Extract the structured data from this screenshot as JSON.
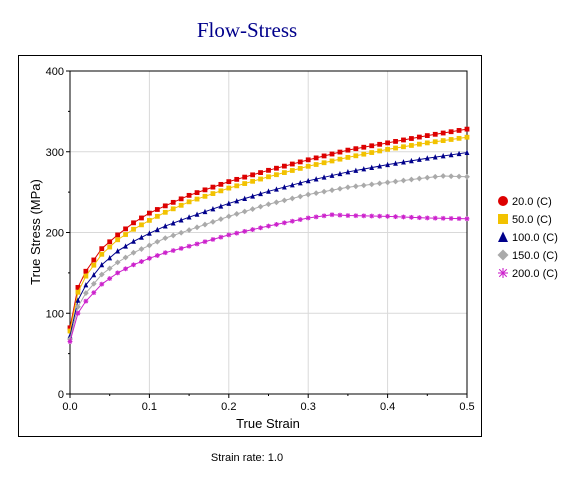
{
  "chart_data": {
    "type": "line",
    "title": "Flow-Stress",
    "xlabel": "True Strain",
    "ylabel": "True Stress (MPa)",
    "xlim": [
      0,
      0.5
    ],
    "ylim": [
      0,
      400
    ],
    "x_ticks": [
      "0.0",
      "0.1",
      "0.2",
      "0.3",
      "0.4",
      "0.5"
    ],
    "y_ticks": [
      "0",
      "100",
      "200",
      "300",
      "400"
    ],
    "grid": true,
    "legend_position": "right",
    "caption": "Strain rate: 1.0",
    "series": [
      {
        "name": "20.0 (C)",
        "color": "#dd0000",
        "marker": "square",
        "points": [
          [
            0,
            82
          ],
          [
            0.01,
            132
          ],
          [
            0.02,
            152
          ],
          [
            0.04,
            180
          ],
          [
            0.06,
            197
          ],
          [
            0.08,
            212
          ],
          [
            0.1,
            224
          ],
          [
            0.12,
            233
          ],
          [
            0.15,
            246
          ],
          [
            0.2,
            263
          ],
          [
            0.25,
            277
          ],
          [
            0.3,
            290
          ],
          [
            0.35,
            302
          ],
          [
            0.4,
            311
          ],
          [
            0.45,
            320
          ],
          [
            0.5,
            328
          ]
        ]
      },
      {
        "name": "50.0 (C)",
        "color": "#f2c200",
        "marker": "square",
        "points": [
          [
            0,
            78
          ],
          [
            0.01,
            126
          ],
          [
            0.02,
            146
          ],
          [
            0.04,
            173
          ],
          [
            0.06,
            191
          ],
          [
            0.08,
            204
          ],
          [
            0.1,
            215
          ],
          [
            0.12,
            225
          ],
          [
            0.15,
            238
          ],
          [
            0.2,
            255
          ],
          [
            0.25,
            269
          ],
          [
            0.3,
            282
          ],
          [
            0.35,
            293
          ],
          [
            0.4,
            303
          ],
          [
            0.45,
            311
          ],
          [
            0.5,
            318
          ]
        ]
      },
      {
        "name": "100.0 (C)",
        "color": "#00008b",
        "marker": "triangle",
        "points": [
          [
            0,
            72
          ],
          [
            0.01,
            116
          ],
          [
            0.02,
            135
          ],
          [
            0.04,
            160
          ],
          [
            0.06,
            177
          ],
          [
            0.08,
            189
          ],
          [
            0.1,
            199
          ],
          [
            0.12,
            208
          ],
          [
            0.15,
            219
          ],
          [
            0.2,
            236
          ],
          [
            0.25,
            251
          ],
          [
            0.3,
            264
          ],
          [
            0.35,
            275
          ],
          [
            0.4,
            284
          ],
          [
            0.45,
            292
          ],
          [
            0.5,
            299
          ]
        ]
      },
      {
        "name": "150.0 (C)",
        "color": "#aaaaaa",
        "marker": "diamond",
        "points": [
          [
            0,
            68
          ],
          [
            0.01,
            108
          ],
          [
            0.02,
            125
          ],
          [
            0.04,
            148
          ],
          [
            0.06,
            163
          ],
          [
            0.08,
            175
          ],
          [
            0.1,
            184
          ],
          [
            0.12,
            193
          ],
          [
            0.15,
            203
          ],
          [
            0.2,
            220
          ],
          [
            0.25,
            235
          ],
          [
            0.3,
            247
          ],
          [
            0.35,
            256
          ],
          [
            0.4,
            262
          ],
          [
            0.45,
            268
          ],
          [
            0.47,
            270
          ],
          [
            0.5,
            269
          ]
        ]
      },
      {
        "name": "200.0 (C)",
        "color": "#cc22cc",
        "marker": "asterisk",
        "points": [
          [
            0,
            65
          ],
          [
            0.01,
            100
          ],
          [
            0.02,
            115
          ],
          [
            0.04,
            136
          ],
          [
            0.06,
            150
          ],
          [
            0.08,
            160
          ],
          [
            0.1,
            168
          ],
          [
            0.12,
            175
          ],
          [
            0.15,
            183
          ],
          [
            0.2,
            197
          ],
          [
            0.25,
            208
          ],
          [
            0.3,
            218
          ],
          [
            0.33,
            222
          ],
          [
            0.35,
            221
          ],
          [
            0.4,
            220
          ],
          [
            0.45,
            218
          ],
          [
            0.5,
            217
          ]
        ]
      }
    ]
  }
}
